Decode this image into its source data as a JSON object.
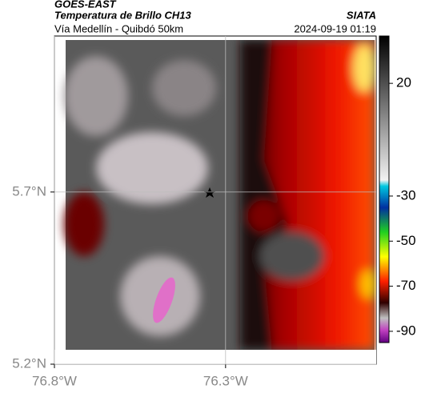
{
  "header": {
    "title": "GOES-EAST",
    "subtitle": "Temperatura de Brillo CH13",
    "source": "SIATA",
    "route": "Vía Medellín - Quibdó 50km",
    "timestamp": "2024-09-19 01:19"
  },
  "map": {
    "xlim": [
      -76.8,
      -75.86
    ],
    "ylim": [
      5.2,
      6.153
    ],
    "xticks": [
      {
        "value": -76.8,
        "label": "76.8°W"
      },
      {
        "value": -76.3,
        "label": "76.3°W"
      }
    ],
    "yticks": [
      {
        "value": 5.7,
        "label": "5.7°N"
      },
      {
        "value": 5.2,
        "label": "5.2°N"
      }
    ],
    "grid": true
  },
  "colorbar": {
    "lim": [
      41,
      -95
    ],
    "ticks": [
      20,
      -30,
      -50,
      -70,
      -90
    ]
  }
}
